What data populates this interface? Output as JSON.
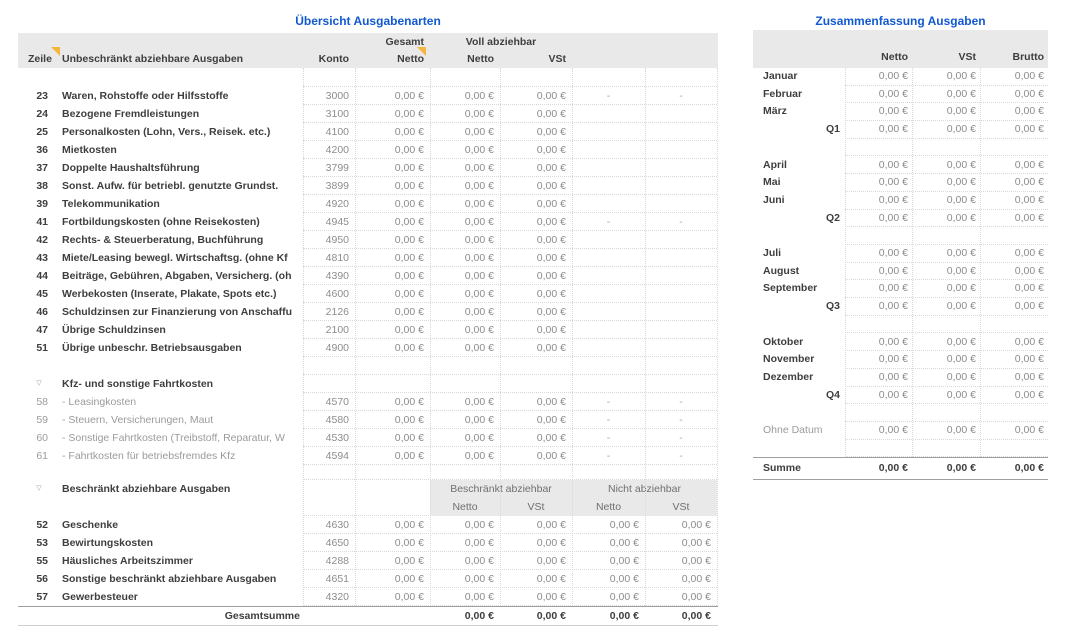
{
  "colors": {
    "accent_blue": "#1158d2",
    "header_bg": "#e9e9e9",
    "marker_orange": "#f5b53e",
    "marker_blue": "#85badf"
  },
  "icons": {
    "disclosure": "▽"
  },
  "left_table": {
    "title": "Übersicht Ausgabenarten",
    "header": {
      "group_gesamt": "Gesamt",
      "group_voll": "Voll abziehbar",
      "col_zeile": "Zeile",
      "col_description": "Unbeschränkt abziehbare Ausgaben",
      "col_konto": "Konto",
      "col_gesamt_netto": "Netto",
      "col_voll_netto": "Netto",
      "col_voll_vst": "VSt"
    },
    "rows": [
      {
        "type": "spacer",
        "h": 19
      },
      {
        "type": "data",
        "num": "23",
        "label": "Waren, Rohstoffe oder Hilfsstoffe",
        "konto": "3000",
        "c4": "0,00 €",
        "c5": "0,00 €",
        "c6": "0,00 €",
        "c7": "-",
        "c8": "-"
      },
      {
        "type": "data",
        "num": "24",
        "label": "Bezogene Fremdleistungen",
        "konto": "3100",
        "c4": "0,00 €",
        "c5": "0,00 €",
        "c6": "0,00 €",
        "c7": "",
        "c8": ""
      },
      {
        "type": "data",
        "num": "25",
        "label": "Personalkosten (Lohn, Vers., Reisek. etc.)",
        "konto": "4100",
        "c4": "0,00 €",
        "c5": "0,00 €",
        "c6": "0,00 €",
        "c7": "",
        "c8": ""
      },
      {
        "type": "data",
        "num": "36",
        "label": "Mietkosten",
        "konto": "4200",
        "c4": "0,00 €",
        "c5": "0,00 €",
        "c6": "0,00 €",
        "c7": "",
        "c8": ""
      },
      {
        "type": "data",
        "num": "37",
        "label": "Doppelte Haushaltsführung",
        "konto": "3799",
        "c4": "0,00 €",
        "c5": "0,00 €",
        "c6": "0,00 €",
        "c7": "",
        "c8": ""
      },
      {
        "type": "data",
        "num": "38",
        "label": "Sonst. Aufw. für betriebl. genutzte Grundst.",
        "konto": "3899",
        "c4": "0,00 €",
        "c5": "0,00 €",
        "c6": "0,00 €",
        "c7": "",
        "c8": ""
      },
      {
        "type": "data",
        "num": "39",
        "label": "Telekommunikation",
        "konto": "4920",
        "c4": "0,00 €",
        "c5": "0,00 €",
        "c6": "0,00 €",
        "c7": "",
        "c8": ""
      },
      {
        "type": "data",
        "num": "41",
        "label": "Fortbildungskosten (ohne Reisekosten)",
        "konto": "4945",
        "c4": "0,00 €",
        "c5": "0,00 €",
        "c6": "0,00 €",
        "c7": "-",
        "c8": "-"
      },
      {
        "type": "data",
        "num": "42",
        "label": "Rechts- & Steuerberatung, Buchführung",
        "konto": "4950",
        "c4": "0,00 €",
        "c5": "0,00 €",
        "c6": "0,00 €",
        "c7": "",
        "c8": ""
      },
      {
        "type": "data",
        "num": "43",
        "label": "Miete/Leasing bewegl. Wirtschaftsg. (ohne Kf",
        "konto": "4810",
        "c4": "0,00 €",
        "c5": "0,00 €",
        "c6": "0,00 €",
        "c7": "",
        "c8": ""
      },
      {
        "type": "data",
        "num": "44",
        "label": "Beiträge, Gebühren, Abgaben, Versicherg. (oh",
        "konto": "4390",
        "c4": "0,00 €",
        "c5": "0,00 €",
        "c6": "0,00 €",
        "c7": "",
        "c8": ""
      },
      {
        "type": "data",
        "num": "45",
        "label": "Werbekosten (Inserate, Plakate, Spots etc.)",
        "konto": "4600",
        "c4": "0,00 €",
        "c5": "0,00 €",
        "c6": "0,00 €",
        "c7": "",
        "c8": ""
      },
      {
        "type": "data",
        "num": "46",
        "label": "Schuldzinsen zur Finanzierung von Anschaffu",
        "konto": "2126",
        "c4": "0,00 €",
        "c5": "0,00 €",
        "c6": "0,00 €",
        "c7": "",
        "c8": "",
        "marker": "desc-orange"
      },
      {
        "type": "data",
        "num": "47",
        "label": "Übrige Schuldzinsen",
        "konto": "2100",
        "c4": "0,00 €",
        "c5": "0,00 €",
        "c6": "0,00 €",
        "c7": "",
        "c8": ""
      },
      {
        "type": "data",
        "num": "51",
        "label": "Übrige unbeschr. Betriebsausgaben",
        "konto": "4900",
        "c4": "0,00 €",
        "c5": "0,00 €",
        "c6": "0,00 €",
        "c7": "",
        "c8": "",
        "marker": "desc-orange"
      },
      {
        "type": "spacer",
        "h": 18
      },
      {
        "type": "section",
        "label": "Kfz- und sonstige Fahrtkosten"
      },
      {
        "type": "sub",
        "num": "58",
        "label": "-  Leasingkosten",
        "konto": "4570",
        "c4": "0,00 €",
        "c5": "0,00 €",
        "c6": "0,00 €",
        "c7": "-",
        "c8": "-"
      },
      {
        "type": "sub",
        "num": "59",
        "label": "-  Steuern, Versicherungen, Maut",
        "konto": "4580",
        "c4": "0,00 €",
        "c5": "0,00 €",
        "c6": "0,00 €",
        "c7": "-",
        "c8": "-"
      },
      {
        "type": "sub",
        "num": "60",
        "label": "-  Sonstige Fahrtkosten (Treibstoff, Reparatur, W",
        "konto": "4530",
        "c4": "0,00 €",
        "c5": "0,00 €",
        "c6": "0,00 €",
        "c7": "-",
        "c8": "-",
        "marker": "desc-blue"
      },
      {
        "type": "sub",
        "num": "61",
        "label": "-  Fahrtkosten für betriebsfremdes Kfz",
        "konto": "4594",
        "c4": "0,00 €",
        "c5": "0,00 €",
        "c6": "0,00 €",
        "c7": "-",
        "c8": "-"
      },
      {
        "type": "spacer",
        "h": 15
      },
      {
        "type": "header2",
        "label": "Beschränkt abziehbare Ausgaben",
        "group1": "Beschränkt abziehbar",
        "group2": "Nicht abziehbar",
        "sub": [
          "Netto",
          "VSt",
          "Netto",
          "VSt"
        ],
        "h": 36
      },
      {
        "type": "data",
        "num": "52",
        "label": "Geschenke",
        "konto": "4630",
        "c4": "0,00 €",
        "c5": "0,00 €",
        "c6": "0,00 €",
        "c7": "0,00 €",
        "c8": "0,00 €"
      },
      {
        "type": "data",
        "num": "53",
        "label": "Bewirtungskosten",
        "konto": "4650",
        "c4": "0,00 €",
        "c5": "0,00 €",
        "c6": "0,00 €",
        "c7": "0,00 €",
        "c8": "0,00 €",
        "marker": "c8-orange"
      },
      {
        "type": "data",
        "num": "55",
        "label": "Häusliches Arbeitszimmer",
        "konto": "4288",
        "c4": "0,00 €",
        "c5": "0,00 €",
        "c6": "0,00 €",
        "c7": "0,00 €",
        "c8": "0,00 €"
      },
      {
        "type": "data",
        "num": "56",
        "label": "Sonstige beschränkt abziehbare Ausgaben",
        "konto": "4651",
        "c4": "0,00 €",
        "c5": "0,00 €",
        "c6": "0,00 €",
        "c7": "0,00 €",
        "c8": "0,00 €"
      },
      {
        "type": "data",
        "num": "57",
        "label": "Gewerbesteuer",
        "konto": "4320",
        "c4": "0,00 €",
        "c5": "0,00 €",
        "c6": "0,00 €",
        "c7": "0,00 €",
        "c8": "0,00 €"
      },
      {
        "type": "total",
        "label": "Gesamtsumme",
        "c5": "0,00 €",
        "c6": "0,00 €",
        "c7": "0,00 €",
        "c8": "0,00 €",
        "marker": "c7-blue"
      }
    ]
  },
  "right_table": {
    "title": "Zusammenfassung Ausgaben",
    "header": {
      "netto": "Netto",
      "vst": "VSt",
      "brutto": "Brutto"
    },
    "rows": [
      {
        "type": "month",
        "label": "Januar",
        "v": [
          "0,00 €",
          "0,00 €",
          "0,00 €"
        ]
      },
      {
        "type": "month",
        "label": "Februar",
        "v": [
          "0,00 €",
          "0,00 €",
          "0,00 €"
        ]
      },
      {
        "type": "month",
        "label": "März",
        "v": [
          "0,00 €",
          "0,00 €",
          "0,00 €"
        ]
      },
      {
        "type": "quarter",
        "label": "Q1",
        "v": [
          "0,00 €",
          "0,00 €",
          "0,00 €"
        ]
      },
      {
        "type": "spacer"
      },
      {
        "type": "month",
        "label": "April",
        "v": [
          "0,00 €",
          "0,00 €",
          "0,00 €"
        ]
      },
      {
        "type": "month",
        "label": "Mai",
        "v": [
          "0,00 €",
          "0,00 €",
          "0,00 €"
        ]
      },
      {
        "type": "month",
        "label": "Juni",
        "v": [
          "0,00 €",
          "0,00 €",
          "0,00 €"
        ]
      },
      {
        "type": "quarter",
        "label": "Q2",
        "v": [
          "0,00 €",
          "0,00 €",
          "0,00 €"
        ]
      },
      {
        "type": "spacer"
      },
      {
        "type": "month",
        "label": "Juli",
        "v": [
          "0,00 €",
          "0,00 €",
          "0,00 €"
        ]
      },
      {
        "type": "month",
        "label": "August",
        "v": [
          "0,00 €",
          "0,00 €",
          "0,00 €"
        ]
      },
      {
        "type": "month",
        "label": "September",
        "v": [
          "0,00 €",
          "0,00 €",
          "0,00 €"
        ]
      },
      {
        "type": "quarter",
        "label": "Q3",
        "v": [
          "0,00 €",
          "0,00 €",
          "0,00 €"
        ]
      },
      {
        "type": "spacer"
      },
      {
        "type": "month",
        "label": "Oktober",
        "v": [
          "0,00 €",
          "0,00 €",
          "0,00 €"
        ]
      },
      {
        "type": "month",
        "label": "November",
        "v": [
          "0,00 €",
          "0,00 €",
          "0,00 €"
        ]
      },
      {
        "type": "month",
        "label": "Dezember",
        "v": [
          "0,00 €",
          "0,00 €",
          "0,00 €"
        ]
      },
      {
        "type": "quarter",
        "label": "Q4",
        "v": [
          "0,00 €",
          "0,00 €",
          "0,00 €"
        ]
      },
      {
        "type": "spacer"
      },
      {
        "type": "nodate",
        "label": "Ohne Datum",
        "v": [
          "0,00 €",
          "0,00 €",
          "0,00 €"
        ]
      },
      {
        "type": "spacer"
      }
    ],
    "summe": {
      "label": "Summe",
      "v": [
        "0,00 €",
        "0,00 €",
        "0,00 €"
      ]
    }
  }
}
